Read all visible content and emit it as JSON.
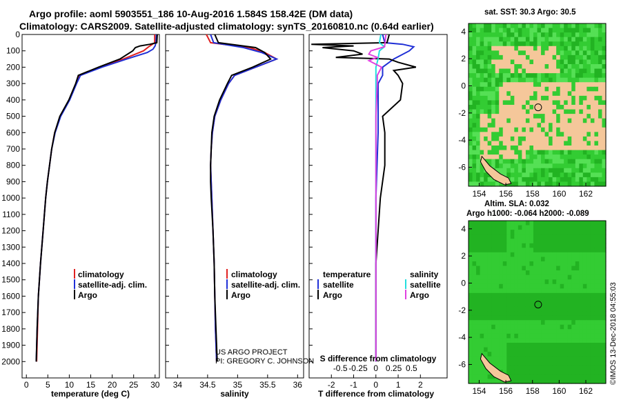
{
  "header": {
    "title_line1": "Argo profile: aoml 5903551_186 10-Aug-2016 1.584S 158.42E (DM data)",
    "title_line2": "Climatology: CARS2009. Satellite-adjusted climatology: synTS_20160810.nc (0.64d earlier)"
  },
  "maps": {
    "sst_title": "sat. SST: 30.3 Argo: 30.5",
    "sla_title1": "Altim. SLA: 0.032",
    "sla_title2": "Argo h1000: -0.064 h2000: -0.089",
    "x_ticks": [
      "154",
      "156",
      "158",
      "160",
      "162"
    ],
    "y_ticks": [
      "4",
      "2",
      "0",
      "-2",
      "-4",
      "-6"
    ],
    "colors": {
      "land": "#f5c79a",
      "green_bright": "#33cc33",
      "green_mid": "#22b322",
      "green_dark": "#129a12",
      "green_light": "#55e055",
      "coast": "#000000"
    },
    "float_lon": 158.42,
    "float_lat": -1.584
  },
  "footer": {
    "credit1": "US ARGO PROJECT",
    "credit2": "PI: GREGORY C. JOHNSON",
    "stamp": "©IMOS 13-Dec-2018 04:55:03"
  },
  "chart_data": [
    {
      "type": "line",
      "title": "",
      "xlabel": "temperature (deg C)",
      "ylabel": "",
      "xlim": [
        -1,
        31
      ],
      "ylim": [
        2100,
        0
      ],
      "x_ticks": [
        "0",
        "5",
        "10",
        "15",
        "20",
        "25",
        "30"
      ],
      "y_ticks": [
        "0",
        "100",
        "200",
        "300",
        "400",
        "500",
        "600",
        "700",
        "800",
        "900",
        "1000",
        "1100",
        "1200",
        "1300",
        "1400",
        "1500",
        "1600",
        "1700",
        "1800",
        "1900",
        "2000"
      ],
      "legend": [
        "climatology",
        "satellite-adj. clim.",
        "Argo"
      ],
      "series": [
        {
          "name": "climatology",
          "color": "#e02020",
          "depth": [
            0,
            50,
            60,
            75,
            100,
            150,
            200,
            250,
            300,
            400,
            500,
            600,
            700,
            800,
            900,
            1000,
            1200,
            1400,
            1600,
            1800,
            2000
          ],
          "values": [
            29.9,
            29.9,
            29.4,
            28.5,
            27.3,
            22.6,
            17.2,
            12.3,
            11.6,
            10.0,
            7.9,
            6.6,
            5.9,
            5.4,
            4.9,
            4.5,
            3.9,
            3.3,
            2.8,
            2.6,
            2.4
          ]
        },
        {
          "name": "satellite-adj. clim.",
          "color": "#1f2fd6",
          "depth": [
            0,
            50,
            70,
            90,
            110,
            150,
            200,
            250,
            300,
            400,
            500,
            600,
            700,
            800,
            900,
            1000,
            1200,
            1400,
            1600,
            1800,
            2000
          ],
          "values": [
            30.3,
            30.2,
            30.0,
            29.5,
            28.2,
            23.4,
            17.6,
            12.6,
            11.7,
            10.1,
            8.0,
            6.7,
            5.9,
            5.4,
            4.9,
            4.5,
            3.9,
            3.3,
            2.8,
            2.5,
            2.3
          ]
        },
        {
          "name": "Argo",
          "color": "#000000",
          "depth": [
            0,
            50,
            60,
            70,
            80,
            100,
            150,
            200,
            250,
            300,
            400,
            500,
            600,
            700,
            800,
            900,
            1000,
            1200,
            1400,
            1600,
            1800,
            2000
          ],
          "values": [
            30.5,
            30.4,
            28.8,
            26.5,
            25.4,
            24.8,
            21.8,
            16.8,
            12.1,
            11.5,
            9.9,
            7.8,
            6.6,
            5.9,
            5.4,
            4.9,
            4.5,
            3.9,
            3.3,
            2.8,
            2.5,
            2.3
          ]
        }
      ]
    },
    {
      "type": "line",
      "title": "",
      "xlabel": "salinity",
      "ylabel": "",
      "xlim": [
        33.8,
        36.1
      ],
      "ylim": [
        2100,
        0
      ],
      "x_ticks": [
        "34",
        "34.5",
        "35",
        "35.5",
        "36"
      ],
      "legend": [
        "climatology",
        "satellite-adj. clim.",
        "Argo"
      ],
      "series": [
        {
          "name": "climatology",
          "color": "#e02020",
          "depth": [
            0,
            50,
            80,
            110,
            150,
            200,
            250,
            300,
            400,
            500,
            600,
            700,
            800,
            900,
            1000,
            1200,
            1400,
            1600,
            1800,
            2000
          ],
          "values": [
            34.48,
            34.55,
            35.2,
            35.45,
            35.65,
            35.3,
            34.95,
            34.85,
            34.72,
            34.62,
            34.58,
            34.56,
            34.55,
            34.56,
            34.57,
            34.59,
            34.61,
            34.62,
            34.63,
            34.65
          ]
        },
        {
          "name": "satellite-adj. clim.",
          "color": "#1f2fd6",
          "depth": [
            0,
            50,
            80,
            110,
            150,
            200,
            250,
            300,
            400,
            500,
            600,
            700,
            800,
            900,
            1000,
            1200,
            1400,
            1600,
            1800,
            2000
          ],
          "values": [
            34.55,
            34.6,
            35.1,
            35.4,
            35.65,
            35.3,
            34.95,
            34.85,
            34.72,
            34.62,
            34.58,
            34.56,
            34.55,
            34.56,
            34.57,
            34.59,
            34.61,
            34.62,
            34.63,
            34.65
          ]
        },
        {
          "name": "Argo",
          "color": "#000000",
          "depth": [
            0,
            50,
            80,
            110,
            150,
            200,
            250,
            300,
            400,
            500,
            600,
            700,
            800,
            900,
            1000,
            1200,
            1400,
            1600,
            1800,
            2000
          ],
          "values": [
            34.62,
            34.68,
            35.3,
            35.45,
            35.55,
            35.25,
            34.9,
            34.83,
            34.7,
            34.61,
            34.57,
            34.56,
            34.55,
            34.55,
            34.56,
            34.59,
            34.61,
            34.62,
            34.64,
            34.66
          ]
        }
      ]
    },
    {
      "type": "line",
      "title": "",
      "xlabel": "T difference from climatology",
      "xlabel2": "S difference from climatology",
      "ylabel": "",
      "xlim": [
        -3,
        3.2
      ],
      "ylim": [
        2100,
        0
      ],
      "x_ticks": [
        "-2",
        "-1",
        "0",
        "1",
        "2"
      ],
      "x2_ticks": [
        "-0.5",
        "-0.25",
        "0",
        "0.25",
        "0.5"
      ],
      "legend_left_title": "temperature",
      "legend_right_title": "salinity",
      "legend": [
        "satellite",
        "Argo",
        "satellite",
        "Argo"
      ],
      "series": [
        {
          "name": "temperature satellite",
          "color": "#1f2fd6",
          "depth": [
            0,
            50,
            60,
            75,
            100,
            150,
            200,
            250,
            300,
            400,
            600,
            800,
            1000,
            1400,
            2000
          ],
          "values": [
            0.3,
            0.4,
            1.2,
            1.7,
            1.5,
            0.8,
            0.3,
            0.3,
            0.1,
            0.1,
            0.1,
            0.05,
            0.0,
            0.0,
            0.0
          ]
        },
        {
          "name": "temperature Argo",
          "color": "#000000",
          "depth": [
            0,
            50,
            60,
            70,
            80,
            100,
            120,
            140,
            150,
            170,
            200,
            220,
            250,
            300,
            400,
            500,
            600,
            800,
            1000,
            1400,
            1600,
            1800,
            2000
          ],
          "values": [
            0.6,
            0.5,
            -2.9,
            -1.0,
            -2.4,
            -1.0,
            -0.6,
            -1.8,
            0.6,
            1.0,
            1.8,
            0.8,
            1.0,
            1.2,
            1.1,
            0.3,
            0.4,
            0.4,
            0.2,
            0.0,
            0.0,
            0.0,
            0.0
          ]
        },
        {
          "name": "salinity satellite",
          "color": "#22dede",
          "depth": [
            0,
            50,
            75,
            100,
            150,
            200,
            300,
            500,
            800,
            1200,
            1600,
            2000
          ],
          "values": [
            0.07,
            0.05,
            0.12,
            0.05,
            0.03,
            0.0,
            0.0,
            0.0,
            0.0,
            0.0,
            0.0,
            0.0
          ]
        },
        {
          "name": "salinity Argo",
          "color": "#e040e0",
          "depth": [
            0,
            50,
            75,
            100,
            120,
            140,
            160,
            200,
            250,
            300,
            500,
            800,
            1200,
            1600,
            2000
          ],
          "values": [
            0.14,
            0.13,
            0.12,
            -0.07,
            -0.1,
            0.02,
            -0.1,
            0.08,
            0.02,
            0.02,
            0.0,
            0.0,
            0.0,
            0.0,
            0.0
          ]
        }
      ]
    }
  ]
}
